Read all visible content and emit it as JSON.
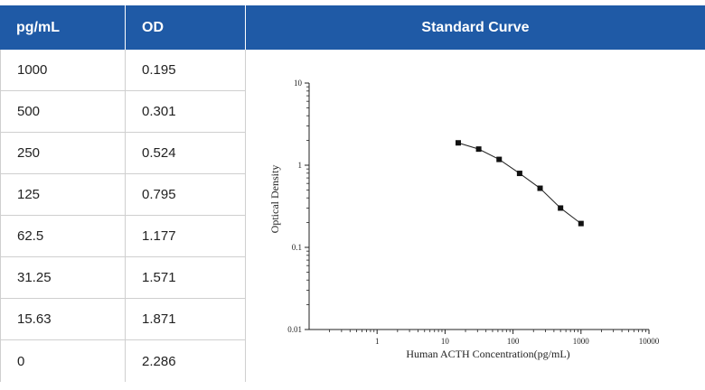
{
  "table": {
    "headers": {
      "conc": "pg/mL",
      "od": "OD",
      "chart": "Standard Curve"
    },
    "rows": [
      {
        "conc": "1000",
        "od": "0.195"
      },
      {
        "conc": "500",
        "od": "0.301"
      },
      {
        "conc": "250",
        "od": "0.524"
      },
      {
        "conc": "125",
        "od": "0.795"
      },
      {
        "conc": "62.5",
        "od": "1.177"
      },
      {
        "conc": "31.25",
        "od": "1.571"
      },
      {
        "conc": "15.63",
        "od": "1.871"
      },
      {
        "conc": "0",
        "od": "2.286"
      }
    ]
  },
  "colors": {
    "header_bg": "#1f5aa6",
    "header_text": "#ffffff",
    "border": "#cfcfcf"
  },
  "chart_data": {
    "type": "line",
    "title": "",
    "xlabel": "Human ACTH Concentration(pg/mL)",
    "ylabel": "Optical Density",
    "xscale": "log",
    "yscale": "log",
    "xlim": [
      0.1,
      10000
    ],
    "ylim": [
      0.01,
      10
    ],
    "xticks": [
      "1",
      "10",
      "100",
      "1000",
      "10000"
    ],
    "yticks": [
      "10",
      "1",
      "0.1",
      "0.01"
    ],
    "grid": false,
    "series": [
      {
        "x": [
          15.63,
          31.25,
          62.5,
          125,
          250,
          500,
          1000
        ],
        "y": [
          1.871,
          1.571,
          1.177,
          0.795,
          0.524,
          0.301,
          0.195
        ]
      }
    ]
  }
}
